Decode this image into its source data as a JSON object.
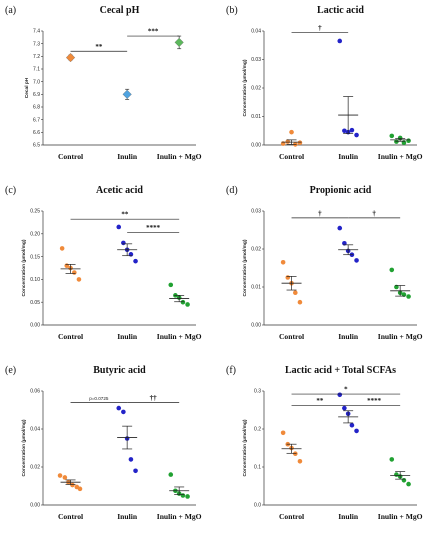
{
  "chart_data": [
    {
      "panel_label": "(a)",
      "title": "Cecal pH",
      "type": "scatter",
      "style": "diamond",
      "ylabel": "Cecal pH",
      "ylim": [
        6.5,
        7.4
      ],
      "yticks": [
        "6.5",
        "6.6",
        "6.7",
        "6.8",
        "6.9",
        "7.0",
        "7.1",
        "7.2",
        "7.3",
        "7.4"
      ],
      "categories": [
        "Control",
        "Inulin",
        "Inulin + MgO"
      ],
      "means": [
        7.19,
        6.9,
        7.31
      ],
      "errors": [
        0.02,
        0.04,
        0.05
      ],
      "colors": [
        "#f08a3a",
        "#4fa3e0",
        "#5cb85c"
      ],
      "significance": [
        {
          "from": 0,
          "to": 1,
          "y": 7.24,
          "label": "**"
        },
        {
          "from": 1,
          "to": 2,
          "y": 7.36,
          "label": "***"
        }
      ]
    },
    {
      "panel_label": "(b)",
      "title": "Lactic acid",
      "type": "scatter",
      "style": "dots",
      "ylabel": "Concentration (µmol/mg)",
      "ylim": [
        0,
        0.04
      ],
      "yticks": [
        "0.00",
        "0.01",
        "0.02",
        "0.03",
        "0.04"
      ],
      "categories": [
        "Control",
        "Inulin",
        "Inulin + MgO"
      ],
      "points": [
        [
          0.0005,
          0.0012,
          0.0045,
          0.0002,
          0.0008
        ],
        [
          0.0365,
          0.005,
          0.0045,
          0.0052,
          0.0035
        ],
        [
          0.0032,
          0.0012,
          0.0025,
          0.0008,
          0.0015
        ]
      ],
      "means": [
        0.001,
        0.0105,
        0.0018
      ],
      "errors": [
        0.0008,
        0.0065,
        0.0005
      ],
      "colors": [
        "#f08a3a",
        "#2323c8",
        "#21a132"
      ],
      "significance": [
        {
          "from": 0,
          "to": 1,
          "y": 0.0395,
          "label": "†"
        }
      ]
    },
    {
      "panel_label": "(c)",
      "title": "Acetic acid",
      "type": "scatter",
      "style": "dots",
      "ylabel": "Concentration (µmol/mg)",
      "ylim": [
        0,
        0.25
      ],
      "yticks": [
        "0.00",
        "0.05",
        "0.10",
        "0.15",
        "0.20",
        "0.25"
      ],
      "categories": [
        "Control",
        "Inulin",
        "Inulin + MgO"
      ],
      "points": [
        [
          0.168,
          0.13,
          0.125,
          0.115,
          0.1
        ],
        [
          0.215,
          0.18,
          0.165,
          0.155,
          0.14
        ],
        [
          0.088,
          0.065,
          0.06,
          0.05,
          0.045
        ]
      ],
      "means": [
        0.123,
        0.165,
        0.058
      ],
      "errors": [
        0.01,
        0.013,
        0.007
      ],
      "colors": [
        "#f08a3a",
        "#2323c8",
        "#21a132"
      ],
      "significance": [
        {
          "from": 0,
          "to": 2,
          "y": 0.232,
          "label": "**"
        },
        {
          "from": 1,
          "to": 2,
          "y": 0.203,
          "label": "****"
        }
      ]
    },
    {
      "panel_label": "(d)",
      "title": "Propionic acid",
      "type": "scatter",
      "style": "dots",
      "ylabel": "Concentration (µmol/mg)",
      "ylim": [
        0,
        0.03
      ],
      "yticks": [
        "0.00",
        "0.01",
        "0.02",
        "0.03"
      ],
      "categories": [
        "Control",
        "Inulin",
        "Inulin + MgO"
      ],
      "points": [
        [
          0.0165,
          0.0125,
          0.011,
          0.0085,
          0.006
        ],
        [
          0.0255,
          0.0215,
          0.0195,
          0.0185,
          0.017
        ],
        [
          0.0145,
          0.01,
          0.0085,
          0.008,
          0.0075
        ]
      ],
      "means": [
        0.011,
        0.0198,
        0.009
      ],
      "errors": [
        0.0018,
        0.0013,
        0.0014
      ],
      "colors": [
        "#f08a3a",
        "#2323c8",
        "#21a132"
      ],
      "significance": [
        {
          "from": 0,
          "to": 1,
          "y": 0.0282,
          "label": "†"
        },
        {
          "from": 1,
          "to": 2,
          "y": 0.0282,
          "label": "†"
        }
      ]
    },
    {
      "panel_label": "(e)",
      "title": "Butyric acid",
      "type": "scatter",
      "style": "dots",
      "ylabel": "Concentration (µmol/mg)",
      "ylim": [
        0,
        0.06
      ],
      "yticks": [
        "0.00",
        "0.02",
        "0.04",
        "0.06"
      ],
      "categories": [
        "Control",
        "Inulin",
        "Inulin + MgO"
      ],
      "points": [
        [
          0.0155,
          0.0145,
          0.012,
          0.0105,
          0.0095,
          0.0085
        ],
        [
          0.051,
          0.049,
          0.035,
          0.024,
          0.018
        ],
        [
          0.016,
          0.0075,
          0.006,
          0.005,
          0.0045
        ]
      ],
      "means": [
        0.012,
        0.0355,
        0.0075
      ],
      "errors": [
        0.0012,
        0.006,
        0.002
      ],
      "colors": [
        "#f08a3a",
        "#2323c8",
        "#21a132"
      ],
      "significance": [
        {
          "from": 0,
          "to": 1,
          "y": 0.054,
          "label": "p=0.0725",
          "small": true
        },
        {
          "from": 1,
          "to": 2,
          "y": 0.054,
          "label": "††"
        }
      ]
    },
    {
      "panel_label": "(f)",
      "title": "Lactic acid + Total SCFAs",
      "type": "scatter",
      "style": "dots",
      "ylabel": "Concentration (µmol/mg)",
      "ylim": [
        0,
        0.3
      ],
      "yticks": [
        "0.0",
        "0.1",
        "0.2",
        "0.3"
      ],
      "categories": [
        "Control",
        "Inulin",
        "Inulin + MgO"
      ],
      "points": [
        [
          0.19,
          0.16,
          0.15,
          0.135,
          0.115
        ],
        [
          0.29,
          0.255,
          0.24,
          0.21,
          0.195
        ],
        [
          0.12,
          0.08,
          0.075,
          0.065,
          0.055
        ]
      ],
      "means": [
        0.148,
        0.232,
        0.078
      ],
      "errors": [
        0.012,
        0.016,
        0.01
      ],
      "colors": [
        "#f08a3a",
        "#2323c8",
        "#21a132"
      ],
      "significance": [
        {
          "from": 0,
          "to": 2,
          "y": 0.292,
          "label": "*"
        },
        {
          "from": 0,
          "to": 1,
          "y": 0.262,
          "label": "**"
        },
        {
          "from": 1,
          "to": 2,
          "y": 0.262,
          "label": "****"
        }
      ]
    }
  ]
}
